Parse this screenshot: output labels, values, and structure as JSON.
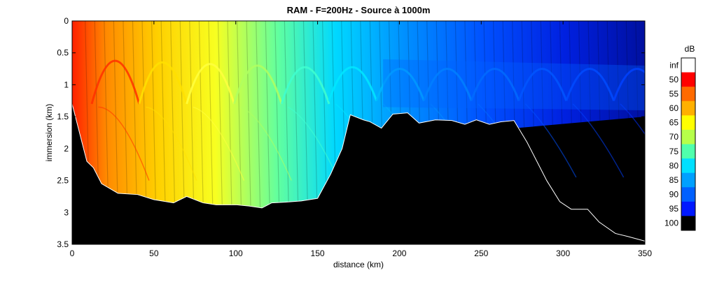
{
  "chart_data": {
    "type": "heatmap",
    "title": "RAM - F=200Hz - Source à 1000m",
    "xlabel": "distance (km)",
    "ylabel": "immersion (km)",
    "xlim": [
      0,
      350
    ],
    "ylim": [
      0,
      3.5
    ],
    "y_reversed": true,
    "x_ticks": [
      0,
      50,
      100,
      150,
      200,
      250,
      300,
      350
    ],
    "y_ticks": [
      0,
      0.5,
      1,
      1.5,
      2,
      2.5,
      3,
      3.5
    ],
    "x_tick_labels": [
      "0",
      "50",
      "100",
      "150",
      "200",
      "250",
      "300",
      "350"
    ],
    "y_tick_labels": [
      "0",
      "0.5",
      "1",
      "1.5",
      "2",
      "2.5",
      "3",
      "3.5"
    ],
    "grid": false,
    "background_color": "#000000",
    "bathymetry": {
      "distance_km": [
        0,
        3,
        6,
        9,
        13,
        18,
        28,
        40,
        50,
        62,
        70,
        80,
        88,
        100,
        108,
        116,
        122,
        130,
        140,
        150,
        158,
        165,
        170,
        178,
        182,
        189,
        196,
        205,
        212,
        222,
        232,
        240,
        247,
        255,
        262,
        270,
        278,
        284,
        290,
        298,
        305,
        315,
        322,
        332,
        340,
        350
      ],
      "depth_km": [
        1.3,
        1.6,
        1.9,
        2.2,
        2.3,
        2.55,
        2.7,
        2.72,
        2.8,
        2.85,
        2.75,
        2.85,
        2.88,
        2.88,
        2.9,
        2.93,
        2.85,
        2.84,
        2.82,
        2.78,
        2.4,
        2.0,
        1.47,
        1.55,
        1.58,
        1.68,
        1.46,
        1.44,
        1.6,
        1.55,
        1.56,
        1.62,
        1.55,
        1.62,
        1.58,
        1.56,
        1.9,
        2.2,
        2.5,
        2.83,
        2.95,
        2.95,
        3.15,
        3.33,
        3.38,
        3.45
      ]
    },
    "colorbar": {
      "unit": "dB",
      "labels": [
        "inf",
        "50",
        "55",
        "60",
        "65",
        "70",
        "75",
        "80",
        "85",
        "90",
        "95",
        "100"
      ],
      "colors": [
        "#ffffff",
        "#ff0000",
        "#ff6a00",
        "#ffb000",
        "#ffff00",
        "#b6ff4a",
        "#50ffac",
        "#00e0ff",
        "#00a0ff",
        "#0060ff",
        "#0018ff",
        "#000000"
      ]
    }
  }
}
